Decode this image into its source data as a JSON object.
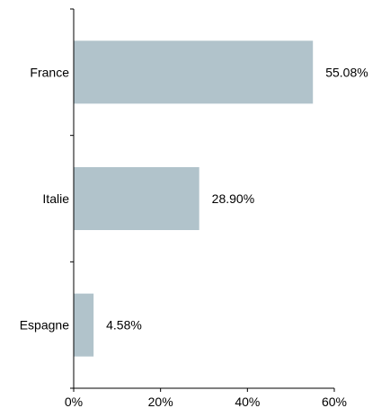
{
  "chart_data": {
    "type": "bar",
    "orientation": "horizontal",
    "categories": [
      "France",
      "Italie",
      "Espagne"
    ],
    "values": [
      55.08,
      28.9,
      4.58
    ],
    "value_labels": [
      "55.08%",
      "28.90%",
      "4.58%"
    ],
    "xlim": [
      0,
      60
    ],
    "x_ticks": [
      0,
      20,
      40,
      60
    ],
    "x_tick_labels": [
      "0%",
      "20%",
      "40%",
      "60%"
    ],
    "grid": false,
    "bar_color": "#b1c3cb",
    "axis_color": "#000000"
  }
}
